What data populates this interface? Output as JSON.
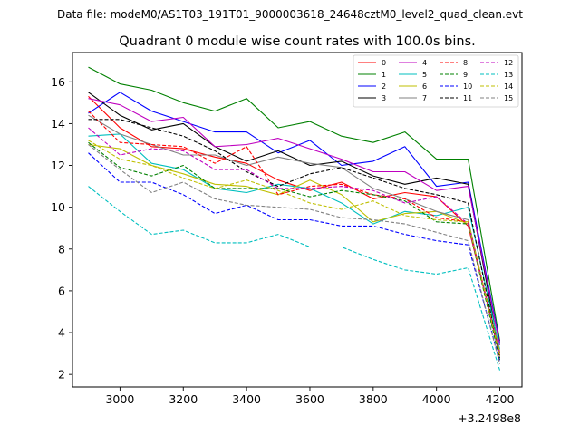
{
  "header": {
    "data_file_label": "Data file: modeM0/AS1T03_191T01_9000003618_24648cztM0_level2_quad_clean.evt"
  },
  "chart_data": {
    "type": "line",
    "title": "Quadrant 0 module wise count rates with 100.0s bins.",
    "xlabel": "",
    "ylabel": "",
    "x_offset_label": "+3.2498e8",
    "xlim": [
      2850,
      4270
    ],
    "ylim": [
      1.4,
      17.4
    ],
    "x_ticks": [
      3000,
      3200,
      3400,
      3600,
      3800,
      4000,
      4200
    ],
    "y_ticks": [
      2,
      4,
      6,
      8,
      10,
      12,
      14,
      16
    ],
    "grid": false,
    "legend_position": "top-right",
    "x": [
      2900,
      3000,
      3100,
      3200,
      3300,
      3400,
      3500,
      3600,
      3700,
      3800,
      3900,
      4000,
      4100,
      4200
    ],
    "series": [
      {
        "name": "0",
        "color": "#ff0000",
        "dash": "solid",
        "values": [
          15.3,
          13.8,
          12.9,
          12.8,
          12.4,
          12.1,
          11.3,
          10.8,
          11.2,
          10.4,
          10.7,
          10.5,
          9.1,
          3.0
        ]
      },
      {
        "name": "1",
        "color": "#008000",
        "dash": "solid",
        "values": [
          16.7,
          15.9,
          15.6,
          15.0,
          14.6,
          15.2,
          13.8,
          14.1,
          13.4,
          13.1,
          13.6,
          12.3,
          12.3,
          3.6
        ]
      },
      {
        "name": "2",
        "color": "#0000ff",
        "dash": "solid",
        "values": [
          14.5,
          15.5,
          14.6,
          14.1,
          13.6,
          13.6,
          12.6,
          13.2,
          12.0,
          12.2,
          12.9,
          11.0,
          11.2,
          3.5
        ]
      },
      {
        "name": "3",
        "color": "#000000",
        "dash": "solid",
        "values": [
          15.5,
          14.4,
          13.7,
          14.0,
          12.9,
          12.2,
          12.7,
          12.0,
          12.2,
          11.5,
          11.1,
          11.4,
          11.1,
          3.0
        ]
      },
      {
        "name": "4",
        "color": "#bf00bf",
        "dash": "solid",
        "values": [
          15.2,
          14.9,
          14.1,
          14.3,
          12.9,
          13.0,
          13.3,
          12.8,
          12.3,
          11.7,
          11.7,
          10.8,
          11.0,
          3.4
        ]
      },
      {
        "name": "5",
        "color": "#00bfbf",
        "dash": "solid",
        "values": [
          13.4,
          13.5,
          12.1,
          11.8,
          10.9,
          10.7,
          11.1,
          10.9,
          10.2,
          9.2,
          9.8,
          9.6,
          10.0,
          3.2
        ]
      },
      {
        "name": "6",
        "color": "#bfbf00",
        "dash": "solid",
        "values": [
          13.0,
          12.8,
          12.0,
          11.6,
          11.1,
          11.0,
          10.6,
          11.3,
          10.6,
          9.3,
          9.7,
          9.8,
          9.2,
          3.1
        ]
      },
      {
        "name": "7",
        "color": "#808080",
        "dash": "solid",
        "values": [
          14.4,
          13.5,
          13.0,
          12.5,
          12.5,
          12.0,
          12.4,
          12.1,
          11.9,
          10.9,
          10.4,
          9.8,
          9.4,
          2.8
        ]
      },
      {
        "name": "8",
        "color": "#ff0000",
        "dash": "dashed",
        "values": [
          14.6,
          13.1,
          13.0,
          12.9,
          12.1,
          12.9,
          10.6,
          11.0,
          11.1,
          10.6,
          10.4,
          9.5,
          9.3,
          2.9
        ]
      },
      {
        "name": "9",
        "color": "#008000",
        "dash": "dashed",
        "values": [
          13.1,
          11.9,
          11.5,
          12.0,
          10.9,
          10.9,
          10.9,
          10.5,
          10.8,
          10.6,
          10.3,
          9.3,
          9.2,
          2.7
        ]
      },
      {
        "name": "10",
        "color": "#0000ff",
        "dash": "dashed",
        "values": [
          12.6,
          11.2,
          11.2,
          10.6,
          9.7,
          10.1,
          9.4,
          9.4,
          9.1,
          9.1,
          8.7,
          8.4,
          8.2,
          2.6
        ]
      },
      {
        "name": "11",
        "color": "#000000",
        "dash": "dashed",
        "values": [
          14.2,
          14.2,
          13.8,
          13.4,
          12.7,
          11.7,
          11.0,
          11.6,
          11.9,
          11.4,
          10.9,
          10.6,
          10.2,
          2.8
        ]
      },
      {
        "name": "12",
        "color": "#bf00bf",
        "dash": "dashed",
        "values": [
          13.8,
          12.5,
          12.8,
          12.7,
          11.8,
          11.8,
          10.9,
          10.9,
          11.0,
          10.8,
          10.2,
          10.5,
          9.2,
          3.0
        ]
      },
      {
        "name": "13",
        "color": "#00bfbf",
        "dash": "dashed",
        "values": [
          11.0,
          9.8,
          8.7,
          8.9,
          8.3,
          8.3,
          8.7,
          8.1,
          8.1,
          7.5,
          7.0,
          6.8,
          7.1,
          2.2
        ]
      },
      {
        "name": "14",
        "color": "#bfbf00",
        "dash": "dashed",
        "values": [
          13.2,
          12.3,
          12.0,
          11.4,
          10.9,
          11.3,
          10.8,
          10.2,
          9.9,
          10.3,
          9.6,
          9.4,
          9.3,
          2.9
        ]
      },
      {
        "name": "15",
        "color": "#808080",
        "dash": "dashed",
        "values": [
          13.0,
          11.8,
          10.7,
          11.2,
          10.4,
          10.1,
          10.0,
          9.9,
          9.5,
          9.4,
          9.2,
          8.8,
          8.4,
          2.5
        ]
      }
    ]
  }
}
